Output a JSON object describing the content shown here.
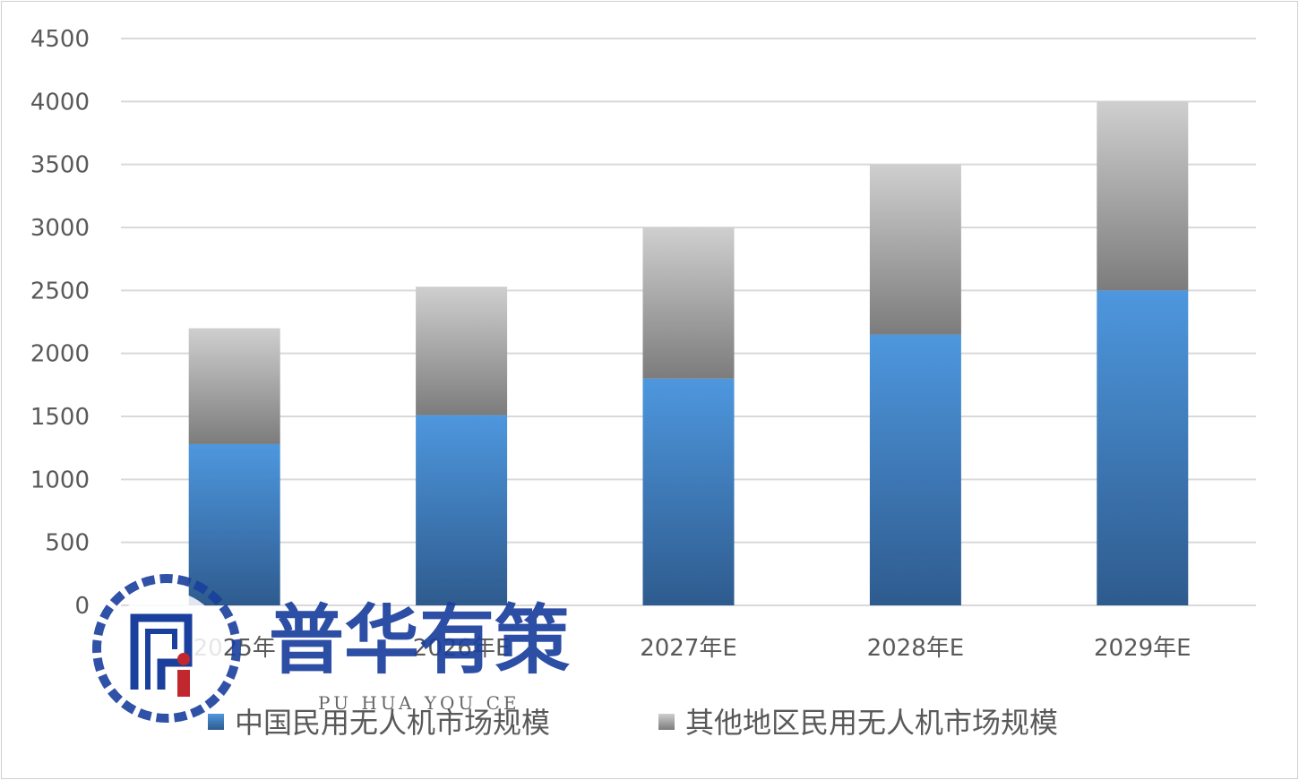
{
  "chart_data": {
    "type": "bar",
    "stacked": true,
    "categories": [
      "2025年",
      "2026年E",
      "2027年E",
      "2028年E",
      "2029年E"
    ],
    "series": [
      {
        "name": "中国民用无人机市场规模",
        "values": [
          1280,
          1510,
          1800,
          2150,
          2500
        ],
        "color": "#4a8fd4"
      },
      {
        "name": "其他地区民用无人机市场规模",
        "values": [
          920,
          1020,
          1200,
          1350,
          1500
        ],
        "color": "#9a9a9a"
      }
    ],
    "title": "",
    "xlabel": "",
    "ylabel": "",
    "ylim": [
      0,
      4500
    ],
    "yticks": [
      0,
      500,
      1000,
      1500,
      2000,
      2500,
      3000,
      3500,
      4000,
      4500
    ],
    "grid": true,
    "legend": "bottom"
  },
  "watermark": {
    "text_cn": "普华有策",
    "text_en": "PU HUA YOU CE"
  }
}
